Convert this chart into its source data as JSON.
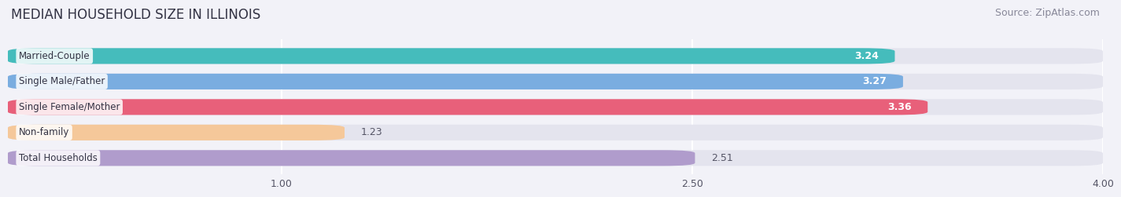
{
  "title": "MEDIAN HOUSEHOLD SIZE IN ILLINOIS",
  "source": "Source: ZipAtlas.com",
  "categories": [
    "Married-Couple",
    "Single Male/Father",
    "Single Female/Mother",
    "Non-family",
    "Total Households"
  ],
  "values": [
    3.24,
    3.27,
    3.36,
    1.23,
    2.51
  ],
  "bar_colors": [
    "#45bcbc",
    "#7aade0",
    "#e8607a",
    "#f5c89a",
    "#b09ccc"
  ],
  "value_labels": [
    "3.24",
    "3.27",
    "3.36",
    "1.23",
    "2.51"
  ],
  "label_inside": [
    true,
    true,
    true,
    false,
    false
  ],
  "xmin": 0.0,
  "xmax": 4.0,
  "xticks": [
    1.0,
    2.5,
    4.0
  ],
  "xtick_labels": [
    "1.00",
    "2.50",
    "4.00"
  ],
  "title_fontsize": 12,
  "source_fontsize": 9,
  "bar_height": 0.62,
  "background_color": "#f2f2f8",
  "bar_background_color": "#e4e4ee"
}
